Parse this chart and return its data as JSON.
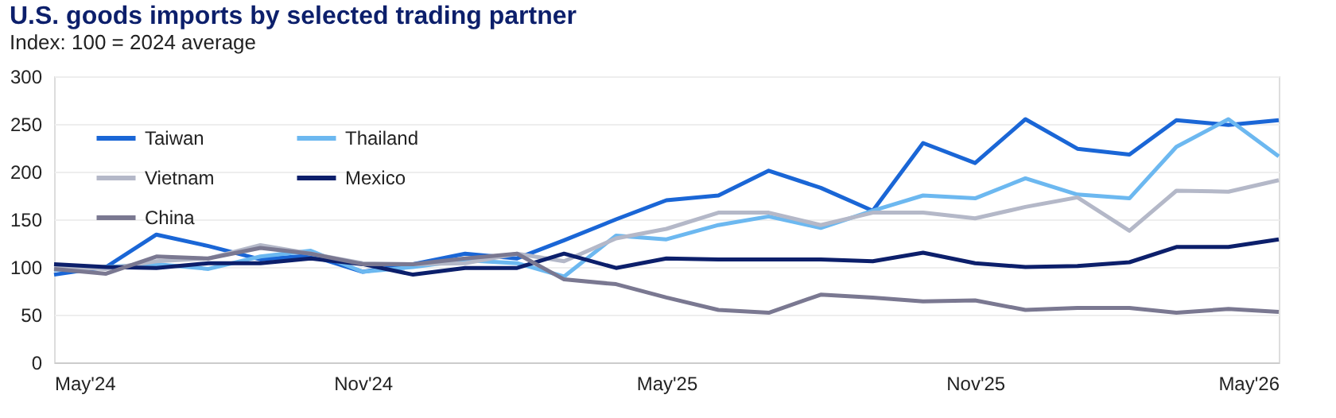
{
  "chart_data": {
    "type": "line",
    "title": "U.S. goods imports by selected trading partner",
    "subtitle": "Index: 100 = 2024 average",
    "x": [
      "2024-05",
      "2024-06",
      "2024-07",
      "2024-08",
      "2024-09",
      "2024-10",
      "2024-11",
      "2024-12",
      "2025-01",
      "2025-02",
      "2025-03",
      "2025-04",
      "2025-05",
      "2025-06",
      "2025-07",
      "2025-08",
      "2025-09",
      "2025-10",
      "2025-11",
      "2025-12",
      "2026-01",
      "2026-02",
      "2026-03",
      "2026-04",
      "2026-05"
    ],
    "series": [
      {
        "name": "Taiwan",
        "color": "#1a66d6",
        "values": [
          92,
          100,
          134,
          122,
          108,
          112,
          95,
          103,
          114,
          109,
          128,
          150,
          170,
          175,
          201,
          183,
          159,
          230,
          209,
          255,
          224,
          218,
          254,
          249,
          254
        ]
      },
      {
        "name": "Thailand",
        "color": "#6cb8f0",
        "values": [
          97,
          100,
          103,
          98,
          111,
          117,
          95,
          100,
          107,
          104,
          90,
          133,
          129,
          144,
          153,
          141,
          159,
          175,
          172,
          193,
          176,
          172,
          226,
          255,
          216
        ]
      },
      {
        "name": "Vietnam",
        "color": "#b4b8c8",
        "values": [
          100,
          98,
          106,
          109,
          123,
          114,
          104,
          103,
          104,
          114,
          106,
          130,
          140,
          157,
          157,
          144,
          157,
          157,
          151,
          163,
          173,
          138,
          180,
          179,
          191
        ]
      },
      {
        "name": "Mexico",
        "color": "#0c1f6b",
        "values": [
          103,
          100,
          99,
          104,
          104,
          109,
          103,
          92,
          99,
          99,
          114,
          99,
          109,
          108,
          108,
          108,
          106,
          115,
          104,
          100,
          101,
          105,
          121,
          121,
          129
        ]
      },
      {
        "name": "China",
        "color": "#7a7891",
        "values": [
          98,
          93,
          111,
          109,
          120,
          114,
          103,
          103,
          109,
          114,
          87,
          82,
          68,
          55,
          52,
          71,
          68,
          64,
          65,
          55,
          57,
          57,
          52,
          56,
          53
        ]
      }
    ],
    "xlim": [
      "2024-05",
      "2026-05"
    ],
    "xticks": [
      {
        "value": "2024-05",
        "label": "May'24"
      },
      {
        "value": "2024-11",
        "label": "Nov'24"
      },
      {
        "value": "2025-05",
        "label": "May'25"
      },
      {
        "value": "2025-11",
        "label": "Nov'25"
      },
      {
        "value": "2026-05",
        "label": "May'26"
      }
    ],
    "ylim": [
      0,
      300
    ],
    "yticks": [
      0,
      50,
      100,
      150,
      200,
      250,
      300
    ],
    "grid": "y",
    "legend": "top left",
    "marker": "none",
    "line_style": "solid"
  }
}
